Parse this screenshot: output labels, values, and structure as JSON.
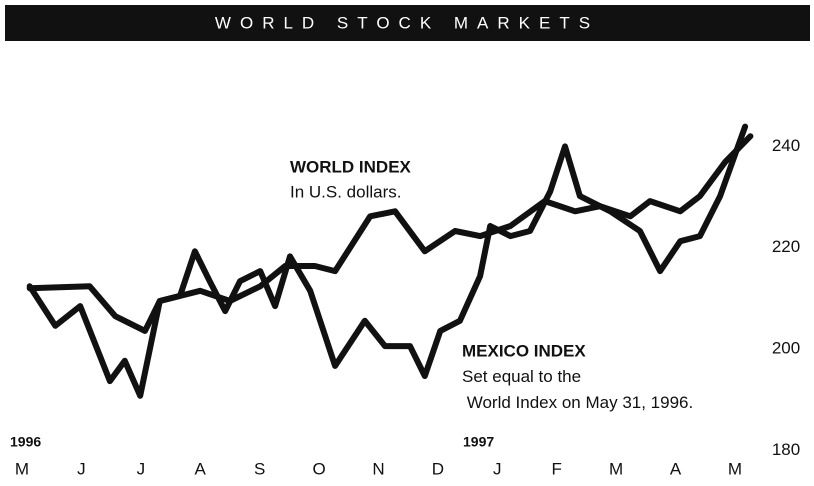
{
  "chart_data": {
    "type": "line",
    "title": "WORLD STOCK MARKETS",
    "annotations": [
      "In U.S. dollars.",
      "Set equal to the World Index on May 31, 1996.",
      "1996",
      "1997"
    ],
    "xlim": [
      -0.37,
      13.33
    ],
    "xticks": [
      {
        "value": 0,
        "label": "M"
      },
      {
        "value": 1,
        "label": "J"
      },
      {
        "value": 2,
        "label": "J"
      },
      {
        "value": 3,
        "label": "A"
      },
      {
        "value": 4,
        "label": "S"
      },
      {
        "value": 5,
        "label": "O"
      },
      {
        "value": 6,
        "label": "N"
      },
      {
        "value": 7,
        "label": "D"
      },
      {
        "value": 8,
        "label": "J"
      },
      {
        "value": 9,
        "label": "F"
      },
      {
        "value": 10,
        "label": "M"
      },
      {
        "value": 11,
        "label": "A"
      },
      {
        "value": 12,
        "label": "M"
      }
    ],
    "ylim": [
      173,
      260
    ],
    "yticks": [
      180,
      200,
      220,
      240
    ],
    "series": [
      {
        "name": "WORLD INDEX",
        "color": "#111111",
        "x": [
          0.13,
          1.14,
          1.57,
          2.07,
          2.32,
          3.0,
          3.5,
          4.01,
          4.43,
          4.93,
          5.27,
          5.86,
          6.28,
          6.78,
          7.29,
          7.71,
          8.22,
          8.8,
          9.31,
          9.73,
          10.24,
          10.57,
          11.08,
          11.41,
          11.84,
          12.26
        ],
        "values": [
          212.0,
          212.4,
          206.5,
          203.6,
          209.5,
          211.5,
          209.5,
          212.4,
          216.4,
          216.4,
          215.4,
          226.2,
          227.2,
          219.3,
          223.3,
          222.3,
          224.3,
          229.2,
          227.2,
          228.2,
          226.2,
          229.2,
          227.2,
          230.2,
          237.0,
          242.0
        ]
      },
      {
        "name": "MEXICO INDEX",
        "color": "#111111",
        "x": [
          0.13,
          0.56,
          0.98,
          1.48,
          1.73,
          1.99,
          2.32,
          2.66,
          2.91,
          3.16,
          3.42,
          3.67,
          4.01,
          4.26,
          4.51,
          4.85,
          5.27,
          5.77,
          6.11,
          6.53,
          6.78,
          7.04,
          7.37,
          7.71,
          7.88,
          8.22,
          8.55,
          8.89,
          9.14,
          9.39,
          9.9,
          10.4,
          10.74,
          11.08,
          11.41,
          11.75,
          12.17
        ],
        "values": [
          212.4,
          204.6,
          208.5,
          193.7,
          197.7,
          190.8,
          209.5,
          210.5,
          219.3,
          213.4,
          207.5,
          213.4,
          215.4,
          208.5,
          218.3,
          211.5,
          196.7,
          205.6,
          200.6,
          200.6,
          194.7,
          203.6,
          205.6,
          214.4,
          224.3,
          222.3,
          223.3,
          231.1,
          240.0,
          230.2,
          227.2,
          223.3,
          215.4,
          221.3,
          222.3,
          230.2,
          243.9
        ]
      }
    ]
  }
}
